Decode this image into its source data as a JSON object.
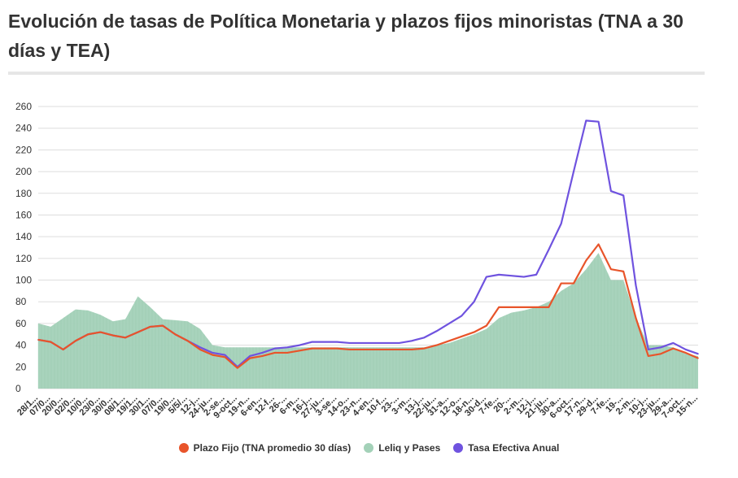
{
  "title": "Evolución de tasas de Política Monetaria y plazos fijos minoristas (TNA a 30 días y TEA)",
  "colors": {
    "plazo_fijo": "#e8542a",
    "leliq": "#a3d1b8",
    "tea": "#6f53df",
    "grid": "#dddddd",
    "text": "#333333"
  },
  "legend": {
    "plazo_fijo": "Plazo Fijo (TNA promedio 30 días)",
    "leliq": "Leliq y Pases",
    "tea": "Tasa Efectiva Anual"
  },
  "chart_data": {
    "type": "line",
    "title": "Evolución de tasas de Política Monetaria y plazos fijos minoristas (TNA a 30 días y TEA)",
    "xlabel": "",
    "ylabel": "",
    "ylim": [
      0,
      260
    ],
    "yticks": [
      0,
      20,
      40,
      60,
      80,
      100,
      120,
      140,
      160,
      180,
      200,
      220,
      240,
      260
    ],
    "grid": true,
    "legend_position": "bottom",
    "x_ticks": [
      "28/1...",
      "07/0...",
      "20/0...",
      "02/0...",
      "10/0...",
      "23/0...",
      "30/0...",
      "08/1...",
      "19/1...",
      "30/1...",
      "07/0...",
      "19/0...",
      "5/5/...",
      "12-j...",
      "24-ju...",
      "2-se...",
      "9-oct...",
      "19-n...",
      "6-en...",
      "12-f...",
      "26-...",
      "6-m...",
      "16-j...",
      "27-ju...",
      "3-se...",
      "14-o...",
      "23-n...",
      "4-en...",
      "10-f...",
      "23-...",
      "3-m...",
      "13-j...",
      "22-ju...",
      "31-a...",
      "12-o...",
      "18-n...",
      "30-d...",
      "7-fe...",
      "20-...",
      "2-m...",
      "12-j...",
      "21-ju...",
      "30-a...",
      "6-oct...",
      "17-n...",
      "29-d...",
      "7-fe...",
      "19-...",
      "2-m...",
      "10-j...",
      "23-ju...",
      "29-a...",
      "7-oct...",
      "15-n..."
    ],
    "series": [
      {
        "name": "Plazo Fijo (TNA promedio 30 días)",
        "style": "line",
        "x": [
          0,
          1,
          2,
          3,
          4,
          5,
          6,
          7,
          8,
          9,
          10,
          11,
          12,
          13,
          14,
          15,
          16,
          17,
          18,
          19,
          20,
          21,
          22,
          23,
          24,
          25,
          26,
          27,
          28,
          29,
          30,
          31,
          32,
          33,
          34,
          35,
          36,
          37,
          38,
          39,
          40,
          41,
          42,
          43,
          44,
          45,
          46,
          47,
          48,
          49,
          50,
          51,
          52,
          53
        ],
        "values": [
          45,
          43,
          36,
          44,
          50,
          52,
          49,
          47,
          52,
          57,
          58,
          50,
          44,
          36,
          31,
          29,
          19,
          28,
          30,
          33,
          33,
          35,
          37,
          37,
          37,
          36,
          36,
          36,
          36,
          36,
          36,
          37,
          40,
          44,
          48,
          52,
          58,
          75,
          75,
          75,
          75,
          75,
          97,
          97,
          118,
          133,
          110,
          108,
          65,
          30,
          32,
          37,
          33,
          28
        ]
      },
      {
        "name": "Leliq y Pases",
        "style": "area",
        "x": [
          0,
          1,
          2,
          3,
          4,
          5,
          6,
          7,
          8,
          9,
          10,
          11,
          12,
          13,
          14,
          15,
          16,
          17,
          18,
          19,
          20,
          21,
          22,
          23,
          24,
          25,
          26,
          27,
          28,
          29,
          30,
          31,
          32,
          33,
          34,
          35,
          36,
          37,
          38,
          39,
          40,
          41,
          42,
          43,
          44,
          45,
          46,
          47,
          48,
          49,
          50,
          51,
          52,
          53
        ],
        "values": [
          60,
          57,
          65,
          73,
          72,
          68,
          62,
          64,
          85,
          75,
          64,
          63,
          62,
          55,
          40,
          38,
          38,
          38,
          38,
          38,
          38,
          38,
          38,
          38,
          38,
          38,
          38,
          38,
          38,
          38,
          38,
          38,
          40,
          42,
          46,
          50,
          55,
          65,
          70,
          72,
          75,
          80,
          90,
          97,
          110,
          125,
          100,
          100,
          65,
          40,
          40,
          38,
          32,
          30
        ]
      },
      {
        "name": "Tasa Efectiva Anual",
        "style": "line",
        "x": [
          0,
          1,
          2,
          3,
          4,
          5,
          6,
          7,
          8,
          9,
          10,
          11,
          12,
          13,
          14,
          15,
          16,
          17,
          18,
          19,
          20,
          21,
          22,
          23,
          24,
          25,
          26,
          27,
          28,
          29,
          30,
          31,
          32,
          33,
          34,
          35,
          36,
          37,
          38,
          39,
          40,
          41,
          42,
          43,
          44,
          45,
          46,
          47,
          48,
          49,
          50,
          51,
          52,
          53
        ],
        "values": [
          45,
          43,
          36,
          44,
          50,
          52,
          49,
          47,
          52,
          57,
          58,
          50,
          44,
          38,
          33,
          31,
          20,
          30,
          33,
          37,
          38,
          40,
          43,
          43,
          43,
          42,
          42,
          42,
          42,
          42,
          44,
          47,
          53,
          60,
          67,
          80,
          103,
          105,
          104,
          103,
          105,
          128,
          152,
          200,
          247,
          246,
          182,
          178,
          95,
          36,
          38,
          42,
          36,
          32
        ]
      }
    ]
  }
}
